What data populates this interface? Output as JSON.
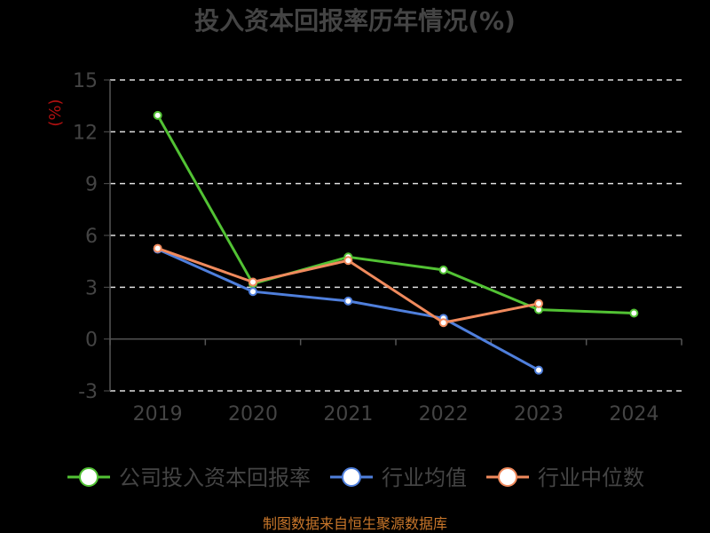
{
  "chart_data": {
    "type": "line",
    "title": "投入资本回报率历年情况(%)",
    "ylabel": "(%)",
    "xlabel": "",
    "categories": [
      "2019",
      "2020",
      "2021",
      "2022",
      "2023",
      "2024"
    ],
    "ylim": [
      -3,
      15
    ],
    "yticks": [
      -3,
      0,
      3,
      6,
      9,
      12,
      15
    ],
    "grid": true,
    "legend_position": "bottom",
    "series": [
      {
        "name": "公司投入资本回报率",
        "color": "#52c234",
        "values": [
          12.95,
          3.2,
          4.75,
          4.0,
          1.7,
          1.5
        ]
      },
      {
        "name": "行业均值",
        "color": "#4f7fdc",
        "values": [
          5.2,
          2.75,
          2.2,
          1.2,
          -1.8,
          null
        ]
      },
      {
        "name": "行业中位数",
        "color": "#f08a5d",
        "values": [
          5.25,
          3.3,
          4.55,
          0.95,
          2.05,
          null
        ]
      }
    ],
    "source": "制图数据来自恒生聚源数据库"
  }
}
